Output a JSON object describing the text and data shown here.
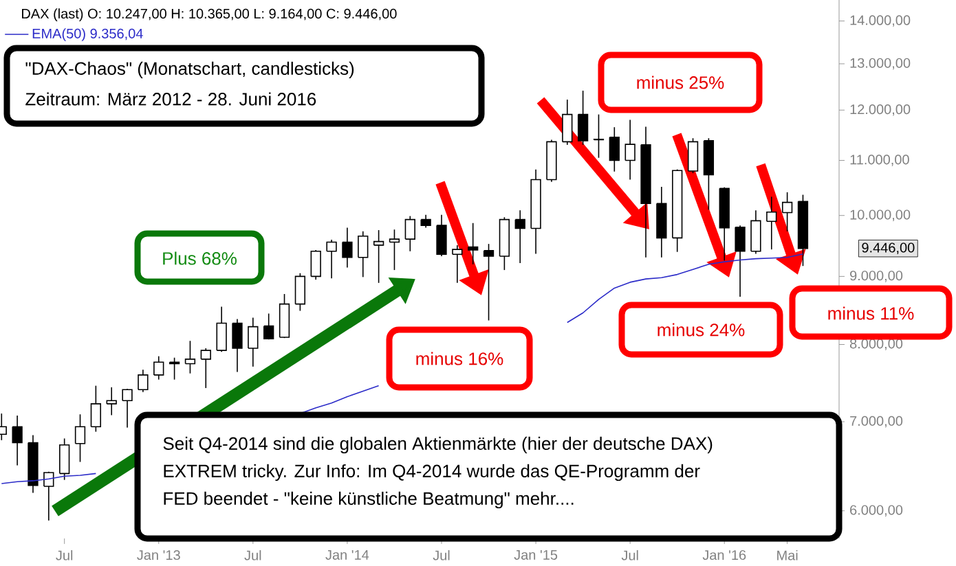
{
  "chart_data": {
    "type": "candlestick",
    "title": "DAX (last)  O: 10.247,00  H: 10.365,00  L: 9.164,00  C: 9.446,00",
    "categories": [
      null,
      null,
      null,
      null,
      "Jul",
      null,
      null,
      null,
      null,
      null,
      "Jan '13",
      null,
      null,
      null,
      null,
      null,
      "Jul",
      null,
      null,
      null,
      null,
      null,
      "Jan '14",
      null,
      null,
      null,
      null,
      null,
      "Jul",
      null,
      null,
      null,
      null,
      null,
      "Jan '15",
      null,
      null,
      null,
      null,
      null,
      "Jul",
      null,
      null,
      null,
      null,
      null,
      "Jan '16",
      null,
      null,
      null,
      "Mai",
      null
    ],
    "ohlc": [
      [
        6850,
        7100,
        6780,
        6940
      ],
      [
        6940,
        7075,
        6490,
        6750
      ],
      [
        6750,
        6840,
        6190,
        6270
      ],
      [
        6260,
        6420,
        5900,
        6410
      ],
      [
        6400,
        6800,
        6330,
        6725
      ],
      [
        6740,
        7090,
        6530,
        6940
      ],
      [
        6940,
        7450,
        6880,
        7220
      ],
      [
        7220,
        7430,
        7080,
        7260
      ],
      [
        7260,
        7410,
        6930,
        7400
      ],
      [
        7400,
        7660,
        7370,
        7590
      ],
      [
        7590,
        7840,
        7530,
        7760
      ],
      [
        7760,
        7820,
        7530,
        7740
      ],
      [
        7740,
        8050,
        7610,
        7800
      ],
      [
        7800,
        7950,
        7420,
        7920
      ],
      [
        7920,
        8540,
        7900,
        8300
      ],
      [
        8300,
        8360,
        7630,
        7950
      ],
      [
        7950,
        8380,
        7700,
        8250
      ],
      [
        8260,
        8440,
        8070,
        8080
      ],
      [
        8100,
        8730,
        8090,
        8580
      ],
      [
        8580,
        9050,
        8480,
        9000
      ],
      [
        9000,
        9420,
        8950,
        9400
      ],
      [
        9400,
        9590,
        8970,
        9550
      ],
      [
        9550,
        9790,
        9140,
        9300
      ],
      [
        9300,
        9730,
        8990,
        9650
      ],
      [
        9500,
        9750,
        8900,
        9560
      ],
      [
        9550,
        9760,
        9100,
        9600
      ],
      [
        9600,
        9990,
        9400,
        9930
      ],
      [
        9930,
        10010,
        9790,
        9830
      ],
      [
        9830,
        10010,
        9320,
        9350
      ],
      [
        9350,
        9500,
        8900,
        9430
      ],
      [
        9470,
        9870,
        9190,
        9420
      ],
      [
        9410,
        9520,
        8340,
        9320
      ],
      [
        9320,
        9970,
        9100,
        9930
      ],
      [
        9930,
        10090,
        9210,
        9780
      ],
      [
        9780,
        10830,
        9360,
        10640
      ],
      [
        10640,
        11400,
        10600,
        11360
      ],
      [
        11360,
        12220,
        11300,
        11910
      ],
      [
        11910,
        12410,
        11300,
        11380
      ],
      [
        11400,
        11910,
        11050,
        11410
      ],
      [
        11450,
        11650,
        10790,
        11000
      ],
      [
        11000,
        11800,
        10640,
        11310
      ],
      [
        11300,
        11660,
        9300,
        10210
      ],
      [
        10210,
        10510,
        9300,
        9620
      ],
      [
        9620,
        10830,
        9390,
        10810
      ],
      [
        10800,
        11430,
        10760,
        11360
      ],
      [
        11380,
        11430,
        10100,
        10730
      ],
      [
        10480,
        10500,
        9250,
        9790
      ],
      [
        9800,
        9830,
        8690,
        9400
      ],
      [
        9400,
        10090,
        9360,
        9910
      ],
      [
        9900,
        10330,
        9430,
        10060
      ],
      [
        10050,
        10410,
        9730,
        10230
      ],
      [
        10247,
        10365,
        9164,
        9446
      ]
    ],
    "series": [
      {
        "name": "EMA(50) 9.356,04",
        "type": "line",
        "color": "#2b2bc8",
        "values": [
          6290,
          6310,
          6320,
          6340,
          6370,
          6380,
          6400,
          null,
          null,
          null,
          null,
          null,
          null,
          null,
          null,
          null,
          null,
          null,
          null,
          7100,
          7170,
          7230,
          7310,
          7380,
          7450,
          null,
          null,
          null,
          null,
          null,
          null,
          null,
          null,
          null,
          null,
          null,
          8310,
          8450,
          8650,
          8820,
          8910,
          8960,
          8980,
          9030,
          9110,
          9190,
          9230,
          9260,
          9280,
          9290,
          9300,
          9356
        ]
      }
    ],
    "log": true,
    "ylim": [
      5720,
      14520
    ],
    "yticks": [
      {
        "value": 6000,
        "label": "6.000,00"
      },
      {
        "value": 7000,
        "label": "7.000,00"
      },
      {
        "value": 8000,
        "label": "8.000,00"
      },
      {
        "value": 9000,
        "label": "9.000,00"
      },
      {
        "value": 10000,
        "label": "10.000,00"
      },
      {
        "value": 11000,
        "label": "11.000,00"
      },
      {
        "value": 12000,
        "label": "12.000,00"
      },
      {
        "value": 13000,
        "label": "13.000,00"
      },
      {
        "value": 14000,
        "label": "14.000,00"
      }
    ],
    "legend": "top left",
    "annotations": [
      "\"DAX-Chaos\" (Monatschart, candlesticks)",
      "Zeitraum: März 2012 - 28. Juni 2016",
      "Plus 68%",
      "minus 16%",
      "minus 25%",
      "minus 24%",
      "minus 11%",
      "Seit  Q4-2014 sind die globalen Aktienmärkte (hier der deutsche DAX)",
      "EXTREM tricky. Zur Info: Im Q4-2014 wurde das QE-Programm der",
      "FED beendet - \"keine künstliche Beatmung\" mehr....",
      "9.446,00"
    ]
  }
}
